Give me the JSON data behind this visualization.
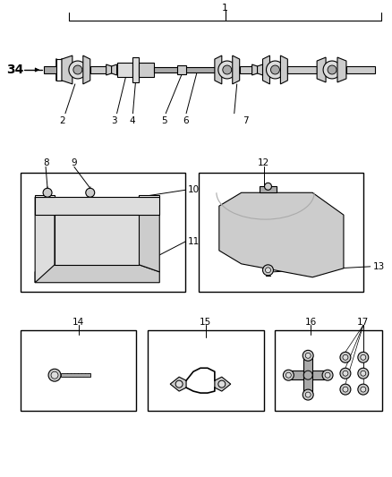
{
  "bg": "#ffffff",
  "lc": "#000000",
  "fw": 4.38,
  "fh": 5.33,
  "dpi": 100,
  "label34": "34",
  "label1": "1",
  "shaft_labels": [
    "2",
    "3",
    "4",
    "5",
    "6",
    "7"
  ],
  "box1_labels": [
    "8",
    "9",
    "10",
    "11"
  ],
  "box2_labels": [
    "12",
    "13"
  ],
  "box3_labels": [
    "14"
  ],
  "box4_labels": [
    "15"
  ],
  "box5_labels": [
    "16",
    "17"
  ],
  "gray1": "#888888",
  "gray2": "#aaaaaa",
  "gray3": "#cccccc",
  "gray4": "#dddddd"
}
